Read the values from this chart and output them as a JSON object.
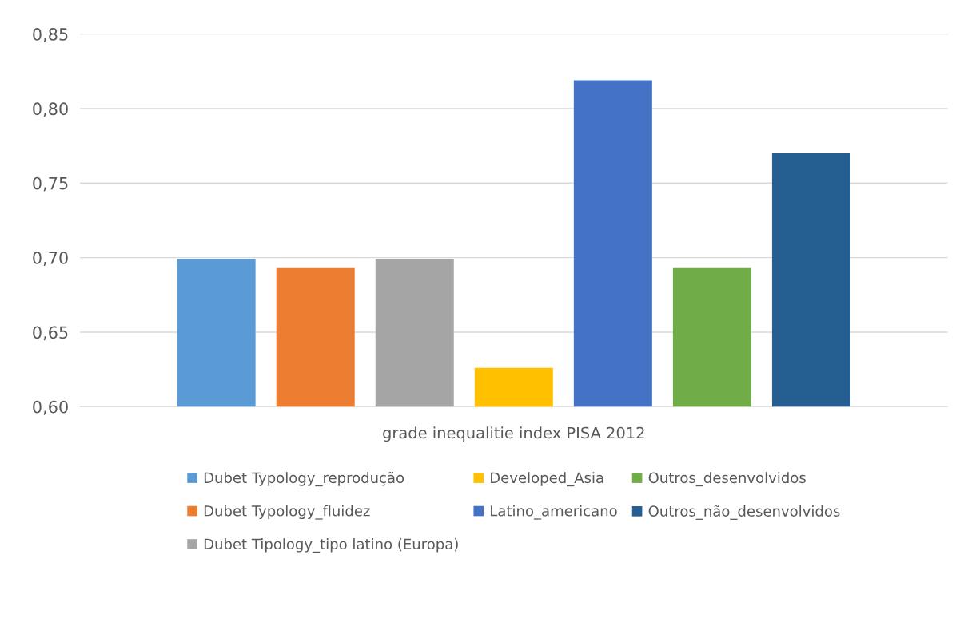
{
  "chart_data": {
    "type": "bar",
    "categories": [
      "grade inequalitie index PISA 2012"
    ],
    "series": [
      {
        "name": "Dubet Typology_reprodução",
        "color": "#5b9bd5",
        "values": [
          0.699
        ]
      },
      {
        "name": "Dubet Typology_fluidez",
        "color": "#ed7d31",
        "values": [
          0.693
        ]
      },
      {
        "name": "Dubet Tipology_tipo latino (Europa)",
        "color": "#a5a5a5",
        "values": [
          0.699
        ]
      },
      {
        "name": "Developed_Asia",
        "color": "#ffc000",
        "values": [
          0.626
        ]
      },
      {
        "name": "Latino_americano",
        "color": "#4472c4",
        "values": [
          0.819
        ]
      },
      {
        "name": "Outros_desenvolvidos",
        "color": "#70ad47",
        "values": [
          0.693
        ]
      },
      {
        "name": "Outros_não_desenvolvidos",
        "color": "#255e91",
        "values": [
          0.77
        ]
      }
    ],
    "ylim": [
      0.6,
      0.85
    ],
    "yticks": [
      {
        "value": 0.6,
        "label": "0,60"
      },
      {
        "value": 0.65,
        "label": "0,65"
      },
      {
        "value": 0.7,
        "label": "0,70"
      },
      {
        "value": 0.75,
        "label": "0,75"
      },
      {
        "value": 0.8,
        "label": "0,80"
      },
      {
        "value": 0.85,
        "label": "0,85"
      }
    ],
    "grid": "y",
    "legend": "bottom"
  }
}
